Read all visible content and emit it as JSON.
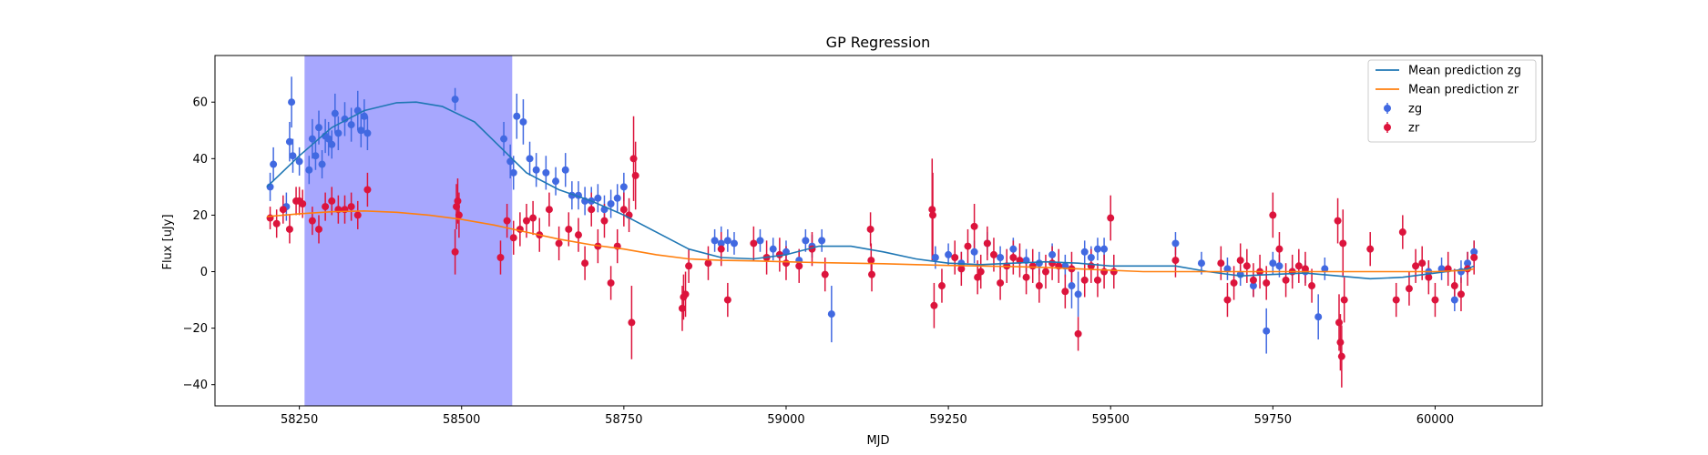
{
  "chart_data": {
    "type": "scatter",
    "title": "GP Regression",
    "xlabel": "MJD",
    "ylabel": "Flux [uJy]",
    "xlim": [
      58120,
      60165
    ],
    "ylim": [
      -47.5,
      76.5
    ],
    "xticks": [
      58250,
      58500,
      58750,
      59000,
      59250,
      59500,
      59750,
      60000
    ],
    "yticks": [
      -40,
      -20,
      0,
      20,
      40,
      60
    ],
    "grid": false,
    "legend_position": "top-right",
    "shaded_region": {
      "x_start": 58258,
      "x_end": 58578,
      "color": "#a7a7fe"
    },
    "mean_predictions": [
      {
        "name": "Mean prediction zg",
        "color": "#1f77b4",
        "x": [
          58200,
          58250,
          58300,
          58350,
          58400,
          58430,
          58470,
          58520,
          58560,
          58600,
          58650,
          58700,
          58750,
          58800,
          58850,
          58900,
          58950,
          59000,
          59050,
          59100,
          59150,
          59200,
          59250,
          59300,
          59350,
          59400,
          59450,
          59500,
          59550,
          59600,
          59650,
          59700,
          59750,
          59800,
          59850,
          59900,
          59950,
          60000,
          60050,
          60060
        ],
        "y": [
          30,
          41,
          51,
          57,
          59.8,
          60,
          58.5,
          53,
          44,
          35,
          29,
          25,
          20,
          14,
          8,
          5,
          4.5,
          6,
          9,
          9,
          7,
          4.5,
          3,
          2.5,
          3,
          3.5,
          3,
          2,
          2,
          2,
          0,
          -1.5,
          -1,
          -0.5,
          -1.5,
          -2.5,
          -2,
          -0.5,
          1,
          2
        ]
      },
      {
        "name": "Mean prediction zr",
        "color": "#ff7f0e",
        "x": [
          58200,
          58250,
          58300,
          58350,
          58400,
          58450,
          58500,
          58550,
          58600,
          58650,
          58700,
          58750,
          58800,
          58850,
          58900,
          58950,
          59000,
          59050,
          59100,
          59150,
          59200,
          59250,
          59300,
          59350,
          59400,
          59450,
          59500,
          59550,
          59600,
          59650,
          59700,
          59750,
          59800,
          59850,
          59900,
          59950,
          60000,
          60050,
          60060
        ],
        "y": [
          19.5,
          20.5,
          21.2,
          21.5,
          21,
          20,
          18.5,
          16.5,
          14,
          11.5,
          9.5,
          8,
          6,
          4.5,
          4,
          3.8,
          3.5,
          3.2,
          3,
          2.8,
          2.5,
          2.2,
          2,
          1.8,
          1.5,
          1,
          0.5,
          0,
          0,
          0,
          0,
          0,
          0,
          0,
          0,
          0,
          0,
          0.5,
          1
        ]
      }
    ],
    "series": [
      {
        "name": "zg",
        "color": "#4169e1",
        "x": [
          58205,
          58210,
          58230,
          58235,
          58238,
          58240,
          58250,
          58265,
          58270,
          58275,
          58280,
          58285,
          58290,
          58295,
          58300,
          58305,
          58310,
          58320,
          58330,
          58340,
          58345,
          58350,
          58355,
          58490,
          58565,
          58575,
          58580,
          58585,
          58595,
          58605,
          58615,
          58630,
          58645,
          58660,
          58670,
          58680,
          58690,
          58700,
          58710,
          58720,
          58730,
          58740,
          58750,
          58890,
          58900,
          58910,
          58920,
          58960,
          58980,
          59000,
          59020,
          59030,
          59040,
          59055,
          59070,
          59230,
          59250,
          59270,
          59290,
          59310,
          59330,
          59350,
          59370,
          59390,
          59410,
          59430,
          59440,
          59450,
          59460,
          59470,
          59480,
          59490,
          59600,
          59640,
          59680,
          59700,
          59720,
          59740,
          59750,
          59760,
          59780,
          59800,
          59820,
          59830,
          59990,
          60010,
          60030,
          60040,
          60050,
          60060
        ],
        "y": [
          30,
          38,
          23,
          46,
          60,
          41,
          39,
          36,
          47,
          41,
          51,
          38,
          48,
          47,
          45,
          56,
          49,
          54,
          52,
          57,
          50,
          55,
          49,
          61,
          47,
          39,
          35,
          55,
          53,
          40,
          36,
          35,
          32,
          36,
          27,
          27,
          25,
          25,
          26,
          22,
          24,
          26,
          30,
          11,
          10,
          11,
          10,
          11,
          8,
          7,
          4,
          11,
          9,
          11,
          -15,
          5,
          6,
          3,
          7,
          10,
          5,
          8,
          4,
          3,
          6,
          2,
          -5,
          -8,
          7,
          5,
          8,
          8,
          10,
          3,
          1,
          -1,
          -5,
          -21,
          3,
          2,
          0,
          0,
          -16,
          1,
          0,
          1,
          -10,
          0,
          3,
          7
        ],
        "yerr": [
          5,
          6,
          5,
          7,
          9,
          6,
          5,
          5,
          7,
          5,
          6,
          5,
          6,
          6,
          5,
          7,
          6,
          6,
          6,
          7,
          6,
          6,
          6,
          4,
          6,
          6,
          6,
          8,
          8,
          6,
          6,
          6,
          5,
          6,
          5,
          5,
          5,
          5,
          5,
          5,
          5,
          5,
          5,
          4,
          6,
          4,
          4,
          4,
          4,
          4,
          4,
          4,
          4,
          4,
          10,
          4,
          4,
          4,
          4,
          4,
          4,
          4,
          4,
          4,
          4,
          4,
          8,
          8,
          4,
          4,
          4,
          4,
          4,
          4,
          4,
          4,
          4,
          8,
          4,
          4,
          4,
          4,
          8,
          4,
          4,
          4,
          4,
          4,
          4,
          4
        ]
      },
      {
        "name": "zr",
        "color": "#dc143c",
        "x": [
          58205,
          58215,
          58225,
          58235,
          58245,
          58250,
          58255,
          58270,
          58280,
          58290,
          58300,
          58310,
          58320,
          58330,
          58340,
          58355,
          58490,
          58492,
          58494,
          58496,
          58560,
          58570,
          58580,
          58590,
          58600,
          58610,
          58620,
          58635,
          58650,
          58665,
          58680,
          58690,
          58700,
          58710,
          58720,
          58730,
          58740,
          58750,
          58758,
          58762,
          58765,
          58768,
          58840,
          58842,
          58845,
          58850,
          58880,
          58900,
          58910,
          58950,
          58970,
          58990,
          59000,
          59020,
          59040,
          59060,
          59130,
          59131,
          59132,
          59225,
          59226,
          59228,
          59240,
          59260,
          59270,
          59280,
          59290,
          59295,
          59300,
          59310,
          59320,
          59330,
          59340,
          59350,
          59360,
          59370,
          59380,
          59390,
          59400,
          59410,
          59420,
          59430,
          59440,
          59450,
          59460,
          59470,
          59480,
          59490,
          59500,
          59505,
          59600,
          59670,
          59680,
          59690,
          59700,
          59710,
          59720,
          59730,
          59740,
          59750,
          59760,
          59770,
          59780,
          59790,
          59800,
          59810,
          59850,
          59852,
          59854,
          59856,
          59858,
          59860,
          59900,
          59940,
          59950,
          59960,
          59970,
          59980,
          59990,
          60000,
          60020,
          60030,
          60040,
          60050,
          60060
        ],
        "y": [
          19,
          17,
          22,
          15,
          25,
          25,
          24,
          18,
          15,
          23,
          25,
          22,
          22,
          23,
          20,
          29,
          7,
          23,
          25,
          20,
          5,
          18,
          12,
          15,
          18,
          19,
          13,
          22,
          10,
          15,
          13,
          3,
          22,
          9,
          18,
          -4,
          9,
          22,
          20,
          -18,
          40,
          34,
          -13,
          -9,
          -8,
          2,
          3,
          8,
          -10,
          10,
          5,
          6,
          3,
          2,
          8,
          -1,
          15,
          4,
          -1,
          22,
          20,
          -12,
          -5,
          5,
          1,
          9,
          16,
          -2,
          0,
          10,
          6,
          -4,
          2,
          5,
          4,
          -2,
          2,
          -5,
          0,
          3,
          2,
          -7,
          1,
          -22,
          -3,
          2,
          -3,
          0,
          19,
          0,
          4,
          3,
          -10,
          -4,
          4,
          2,
          -3,
          0,
          -4,
          20,
          8,
          -3,
          0,
          2,
          1,
          -5,
          18,
          -18,
          -25,
          -30,
          10,
          -10,
          8,
          -10,
          14,
          -6,
          2,
          3,
          -2,
          -10,
          1,
          -5,
          -8,
          1,
          5
        ],
        "yerr": [
          4,
          5,
          5,
          5,
          5,
          5,
          5,
          5,
          5,
          5,
          5,
          5,
          5,
          5,
          5,
          6,
          8,
          8,
          8,
          8,
          6,
          6,
          6,
          6,
          6,
          6,
          6,
          6,
          6,
          6,
          6,
          6,
          6,
          6,
          6,
          6,
          6,
          6,
          6,
          13,
          15,
          12,
          8,
          8,
          8,
          6,
          6,
          6,
          6,
          6,
          6,
          6,
          6,
          6,
          6,
          6,
          6,
          6,
          6,
          18,
          15,
          8,
          6,
          6,
          6,
          6,
          8,
          6,
          6,
          6,
          6,
          6,
          6,
          6,
          6,
          6,
          6,
          6,
          6,
          6,
          6,
          6,
          6,
          6,
          6,
          6,
          6,
          6,
          8,
          6,
          6,
          6,
          6,
          6,
          6,
          6,
          6,
          6,
          6,
          8,
          6,
          6,
          6,
          6,
          6,
          6,
          8,
          10,
          10,
          11,
          12,
          8,
          6,
          6,
          6,
          6,
          6,
          6,
          6,
          6,
          6,
          6,
          6,
          6,
          6
        ]
      }
    ]
  }
}
